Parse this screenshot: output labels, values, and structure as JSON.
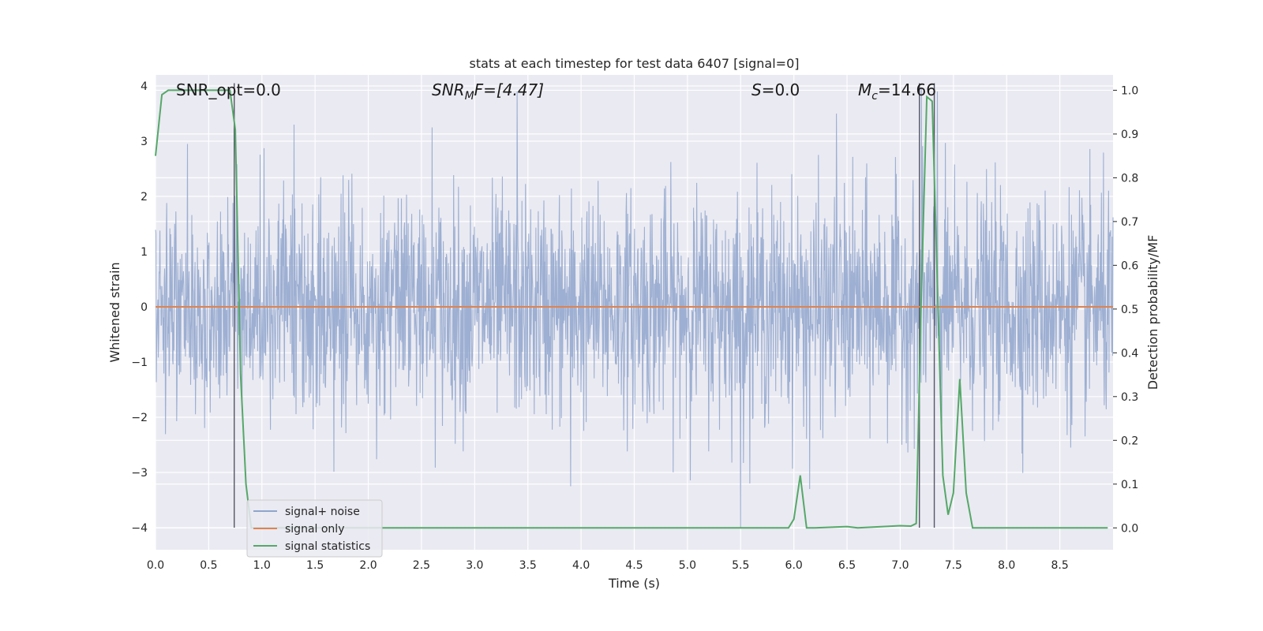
{
  "chart_data": {
    "type": "line",
    "title": "stats at each timestep for test data 6407 [signal=0]",
    "xlabel": "Time (s)",
    "ylabel": "Whitened strain",
    "y2label": "Detection probability/MF",
    "xlim": [
      0,
      9.0
    ],
    "ylim": [
      -4.4,
      4.2
    ],
    "y2lim": [
      -0.05,
      1.035
    ],
    "xticks": [
      "0.0",
      "0.5",
      "1.0",
      "1.5",
      "2.0",
      "2.5",
      "3.0",
      "3.5",
      "4.0",
      "4.5",
      "5.0",
      "5.5",
      "6.0",
      "6.5",
      "7.0",
      "7.5",
      "8.0",
      "8.5"
    ],
    "yticks": [
      "4",
      "3",
      "2",
      "1",
      "0",
      "−1",
      "−2",
      "−3",
      "−4"
    ],
    "y2ticks": [
      "1.0",
      "0.9",
      "0.8",
      "0.7",
      "0.6",
      "0.5",
      "0.4",
      "0.3",
      "0.2",
      "0.1",
      "0.0"
    ],
    "grid": true,
    "legend_position": "lower-left",
    "annotations": {
      "snr_opt": "SNR_opt=0.0",
      "snr_mf_base": "SNR",
      "snr_mf_sub": "M",
      "snr_mf_rest": "F=[4.47]",
      "s_main": "S",
      "s_rest": "=0.0",
      "mc_base": "M",
      "mc_sub": "c",
      "mc_rest": "=14.66"
    },
    "series": [
      {
        "name": "signal+ noise",
        "color": "#8fa5cc",
        "style": "noise",
        "sigma": 1.0,
        "peaks": [
          [
            0.3,
            2.95
          ],
          [
            1.3,
            3.3
          ],
          [
            2.6,
            3.25
          ],
          [
            3.4,
            3.9
          ],
          [
            5.5,
            3.85
          ],
          [
            6.4,
            3.5
          ],
          [
            7.2,
            3.95
          ],
          [
            7.35,
            3.9
          ],
          [
            5.5,
            -4.0
          ],
          [
            6.15,
            -3.3
          ],
          [
            3.9,
            -3.25
          ]
        ]
      },
      {
        "name": "signal only",
        "color": "#dd8452",
        "values_const": 0.0
      },
      {
        "name": "signal statistics",
        "color": "#55a868",
        "axis": "right",
        "x": [
          0,
          0.06,
          0.12,
          0.3,
          0.5,
          0.7,
          0.75,
          0.8,
          0.85,
          0.9,
          1.0,
          2.0,
          3.0,
          4.0,
          5.0,
          5.95,
          6.0,
          6.06,
          6.12,
          6.2,
          6.5,
          6.6,
          7.0,
          7.1,
          7.15,
          7.2,
          7.25,
          7.3,
          7.35,
          7.4,
          7.45,
          7.5,
          7.56,
          7.62,
          7.68,
          8.0,
          8.5,
          8.95
        ],
        "values": [
          0.85,
          0.99,
          1.0,
          1.0,
          1.0,
          1.0,
          0.91,
          0.35,
          0.1,
          0.0,
          0.0,
          0.0,
          0.0,
          0.0,
          0.0,
          0.0,
          0.02,
          0.12,
          0.0,
          0.0,
          0.003,
          0.0,
          0.005,
          0.004,
          0.01,
          0.55,
          0.985,
          0.975,
          0.55,
          0.12,
          0.03,
          0.08,
          0.34,
          0.08,
          0.0,
          0.0,
          0.0,
          0.0
        ]
      }
    ],
    "vlines": [
      0.74,
      7.18,
      7.32
    ]
  }
}
